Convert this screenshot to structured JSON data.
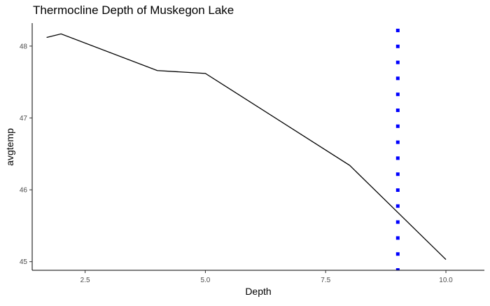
{
  "chart_data": {
    "type": "line",
    "title": "Thermocline Depth of Muskegon Lake",
    "xlabel": "Depth",
    "ylabel": "avgtemp",
    "xlim": [
      1.4,
      10.8
    ],
    "ylim": [
      44.88,
      48.32
    ],
    "x_ticks": [
      2.5,
      5.0,
      7.5,
      10.0
    ],
    "x_tick_labels": [
      "2.5",
      "5.0",
      "7.5",
      "10.0"
    ],
    "y_ticks": [
      45,
      46,
      47,
      48
    ],
    "y_tick_labels": [
      "45",
      "46",
      "47",
      "48"
    ],
    "grid": false,
    "series": [
      {
        "x": [
          1.7,
          2.0,
          4.0,
          5.0,
          8.0,
          10.0
        ],
        "y": [
          48.12,
          48.17,
          47.66,
          47.62,
          46.34,
          45.03
        ],
        "color": "#000000"
      }
    ],
    "vline": {
      "x": 9.0,
      "color": "#0000ff",
      "style": "dotted"
    }
  }
}
